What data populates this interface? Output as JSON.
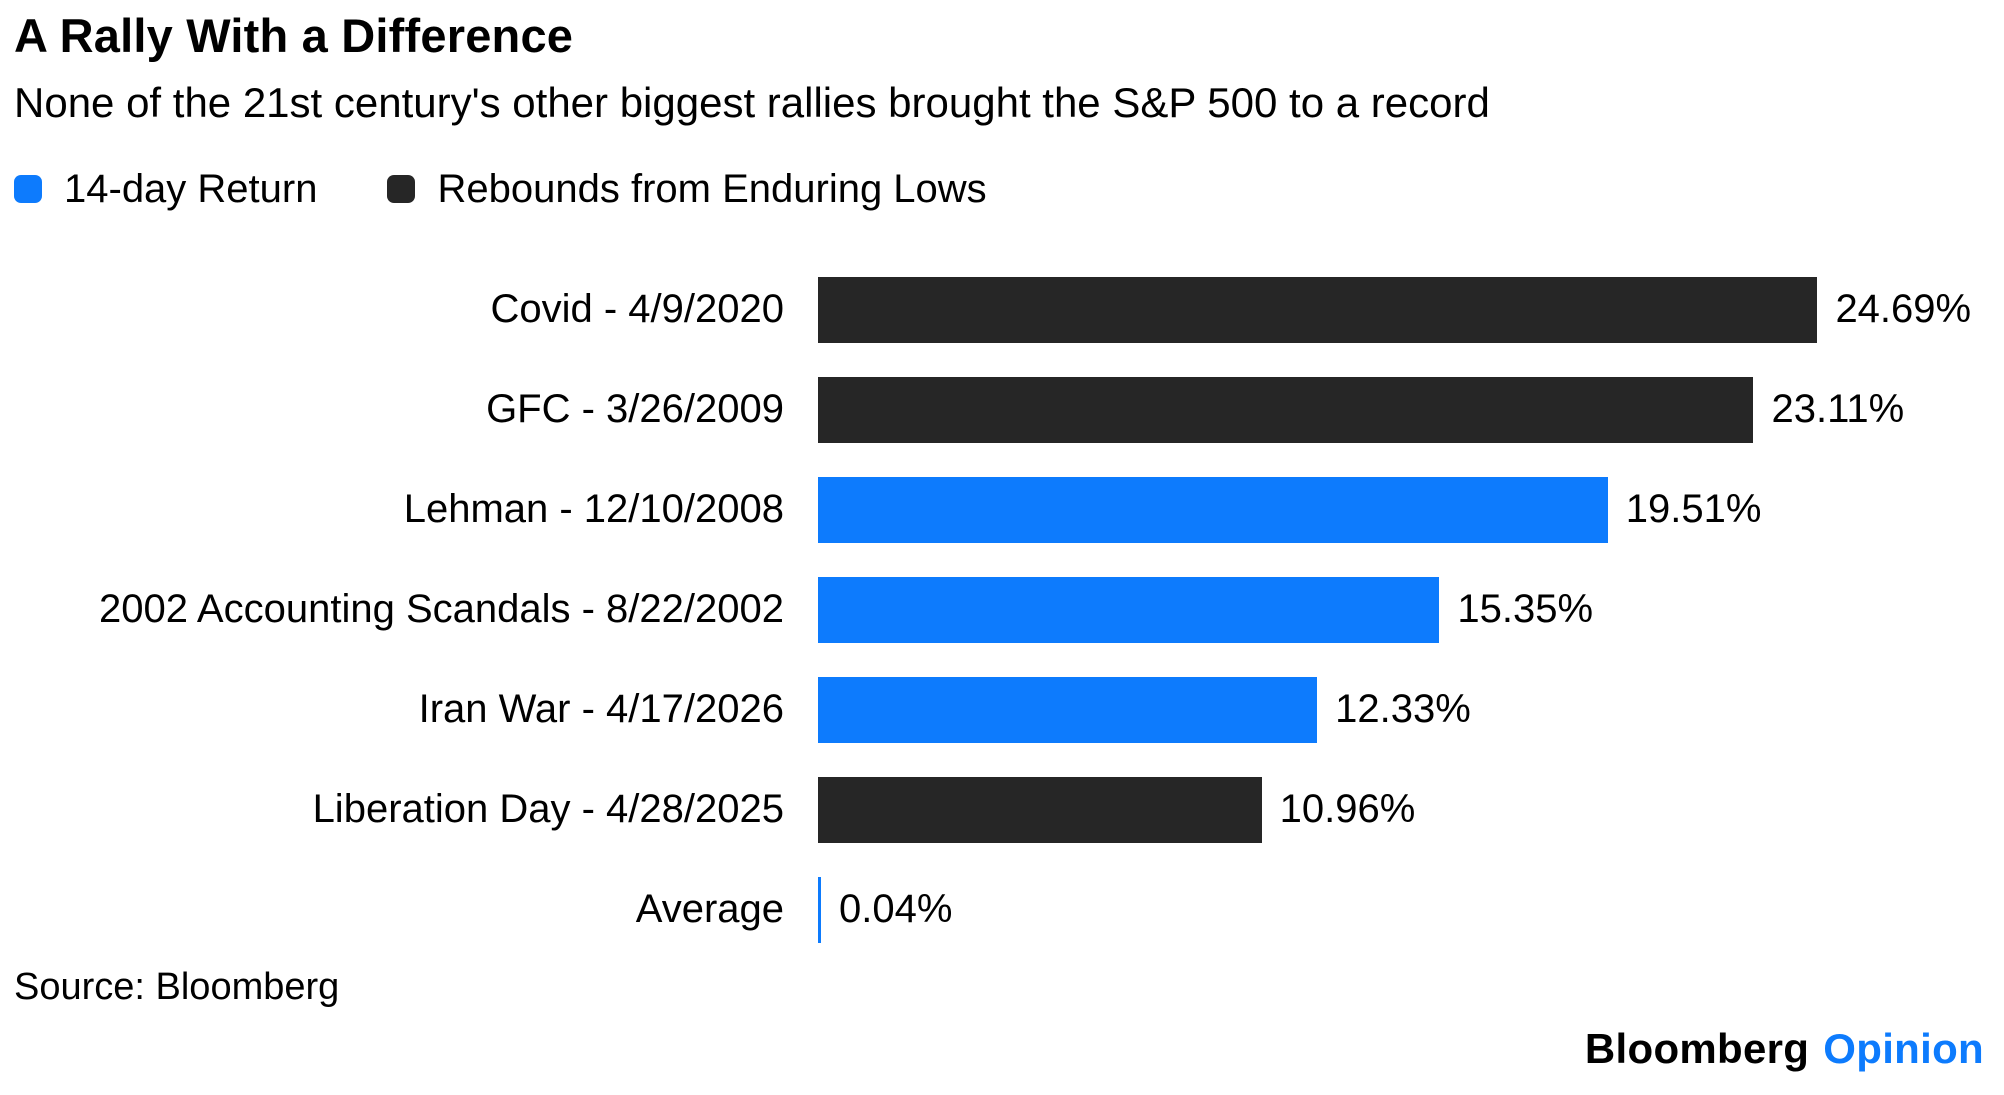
{
  "header": {
    "title": "A Rally With a Difference",
    "subtitle": "None of the 21st century's other biggest rallies brought the S&P 500 to a record"
  },
  "legend": {
    "items": [
      {
        "label": "14-day Return",
        "color": "#0d7bfd"
      },
      {
        "label": "Rebounds from Enduring Lows",
        "color": "#262626"
      }
    ]
  },
  "chart_data": {
    "type": "bar",
    "orientation": "horizontal",
    "title": "A Rally With a Difference",
    "subtitle": "None of the 21st century's other biggest rallies brought the S&P 500 to a record",
    "xlabel": "",
    "ylabel": "",
    "xlim_percent": [
      0,
      25
    ],
    "grid": false,
    "legend_position": "top",
    "colors": {
      "return14": "#0d7bfd",
      "rebound": "#262626"
    },
    "bars": [
      {
        "label": "Covid - 4/9/2020",
        "value": 24.69,
        "display": "24.69%",
        "group": "rebound"
      },
      {
        "label": "GFC - 3/26/2009",
        "value": 23.11,
        "display": "23.11%",
        "group": "rebound"
      },
      {
        "label": "Lehman - 12/10/2008",
        "value": 19.51,
        "display": "19.51%",
        "group": "return14"
      },
      {
        "label": "2002 Accounting Scandals - 8/22/2002",
        "value": 15.35,
        "display": "15.35%",
        "group": "return14"
      },
      {
        "label": "Iran War - 4/17/2026",
        "value": 12.33,
        "display": "12.33%",
        "group": "return14"
      },
      {
        "label": "Liberation Day - 4/28/2025",
        "value": 10.96,
        "display": "10.96%",
        "group": "rebound"
      },
      {
        "label": "Average",
        "value": 0.04,
        "display": "0.04%",
        "group": "return14"
      }
    ]
  },
  "footer": {
    "source": "Source: Bloomberg",
    "brand": "Bloomberg",
    "brand_suffix": "Opinion",
    "brand_suffix_color": "#0d7bfd"
  }
}
